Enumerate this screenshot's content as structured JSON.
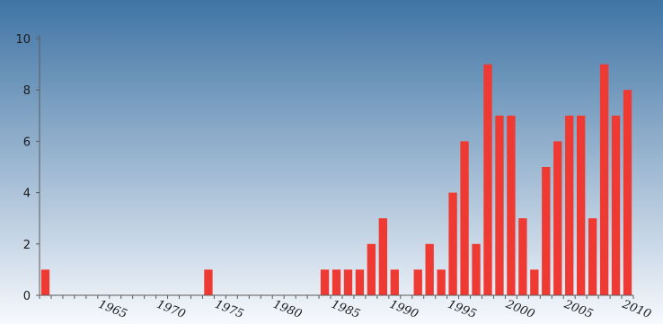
{
  "chart_data": {
    "type": "bar",
    "title": "",
    "xlabel": "",
    "ylabel": "",
    "ylim": [
      0,
      10
    ],
    "yticks": [
      0,
      2,
      4,
      6,
      8,
      10
    ],
    "xlim": [
      1960,
      2011
    ],
    "xticks": [
      1965,
      1970,
      1975,
      1980,
      1985,
      1990,
      1995,
      2000,
      2005,
      2010
    ],
    "grid": false,
    "legend": "none",
    "bar_color": "#ee3a33",
    "background_top": "#3f74a4",
    "background_bottom": "#f7f9fd",
    "x": [
      1960,
      1974,
      1984,
      1985,
      1986,
      1987,
      1988,
      1989,
      1990,
      1992,
      1993,
      1994,
      1995,
      1996,
      1997,
      1998,
      1999,
      2000,
      2001,
      2002,
      2003,
      2004,
      2005,
      2006,
      2007,
      2008,
      2009,
      2010
    ],
    "values": [
      1,
      1,
      1,
      1,
      1,
      1,
      2,
      3,
      1,
      1,
      2,
      1,
      4,
      6,
      2,
      9,
      7,
      7,
      3,
      1,
      5,
      6,
      7,
      7,
      3,
      9,
      7,
      8
    ]
  }
}
